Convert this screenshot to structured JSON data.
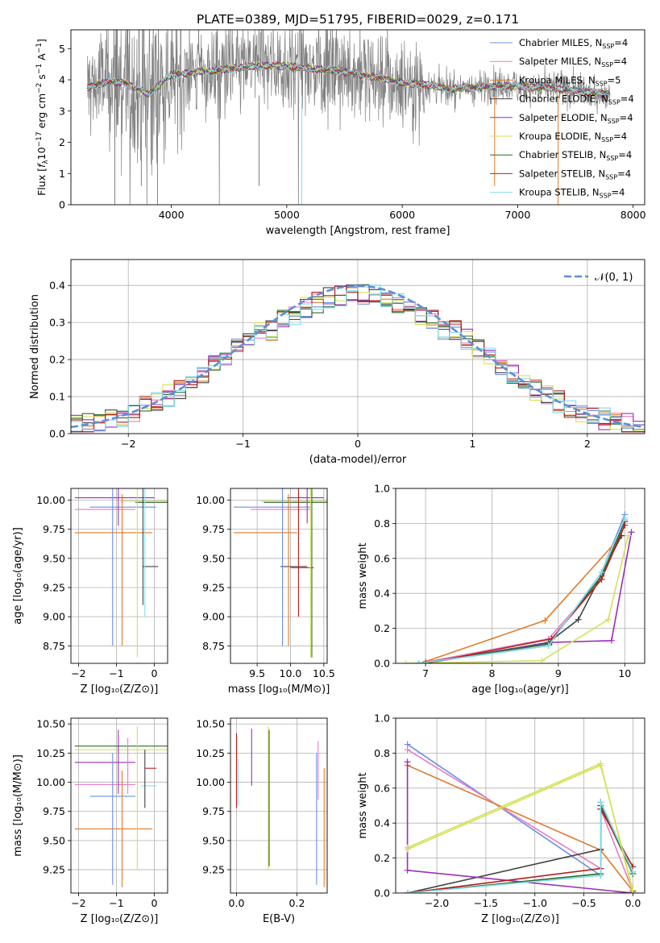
{
  "figure": {
    "title": "PLATE=0389, MJD=51795, FIBERID=0029, z=0.171"
  },
  "models": [
    {
      "name": "Chabrier MILES, N_SSP=4",
      "label": "Chabrier MILES, N",
      "sub": "SSP",
      "suffix": "=4",
      "color": "#6b8fe6"
    },
    {
      "name": "Salpeter MILES, N_SSP=4",
      "label": "Salpeter MILES, N",
      "sub": "SSP",
      "suffix": "=4",
      "color": "#e87dc3"
    },
    {
      "name": "Kroupa MILES, N_SSP=5",
      "label": "Kroupa MILES, N",
      "sub": "SSP",
      "suffix": "=5",
      "color": "#e07b2a"
    },
    {
      "name": "Chabrier ELODIE, N_SSP=4",
      "label": "Chabrier ELODIE, N",
      "sub": "SSP",
      "suffix": "=4",
      "color": "#444444"
    },
    {
      "name": "Salpeter ELODIE, N_SSP=4",
      "label": "Salpeter ELODIE, N",
      "sub": "SSP",
      "suffix": "=4",
      "color": "#9a2fb5"
    },
    {
      "name": "Kroupa ELODIE, N_SSP=4",
      "label": "Kroupa ELODIE, N",
      "sub": "SSP",
      "suffix": "=4",
      "color": "#d4e157"
    },
    {
      "name": "Chabrier STELIB, N_SSP=4",
      "label": "Chabrier STELIB, N",
      "sub": "SSP",
      "suffix": "=4",
      "color": "#2f6b2f"
    },
    {
      "name": "Salpeter STELIB, N_SSP=4",
      "label": "Salpeter STELIB, N",
      "sub": "SSP",
      "suffix": "=4",
      "color": "#b71c1c"
    },
    {
      "name": "Kroupa STELIB, N_SSP=4",
      "label": "Kroupa STELIB, N",
      "sub": "SSP",
      "suffix": "=4",
      "color": "#80deea"
    }
  ],
  "chart_data": [
    {
      "id": "spectrum",
      "type": "line",
      "xlabel": "wavelength [Angstrom, rest frame]",
      "ylabel": "Flux [f_λ 10^-17 erg cm^-2 s^-1 A^-1]",
      "xlim": [
        3130,
        8100
      ],
      "ylim": [
        0,
        5.6
      ],
      "xticks": [
        4000,
        5000,
        6000,
        7000,
        8000
      ],
      "yticks": [
        0,
        1,
        2,
        3,
        4,
        5
      ],
      "grid": false,
      "legend": "top-right",
      "data_color": "#808080",
      "continuum_x": [
        3270,
        3450,
        3600,
        3800,
        4000,
        4200,
        4400,
        4600,
        4800,
        5000,
        5200,
        5400,
        5600,
        5800,
        6000,
        6200,
        6400,
        6600,
        6800,
        7000,
        7200,
        7400,
        7600,
        7800
      ],
      "continuum_y": [
        3.75,
        3.95,
        3.9,
        3.55,
        4.15,
        4.25,
        4.3,
        4.4,
        4.45,
        4.45,
        4.35,
        4.3,
        4.2,
        4.05,
        3.9,
        3.85,
        3.7,
        3.75,
        3.8,
        3.8,
        3.75,
        3.7,
        3.6,
        3.55
      ]
    },
    {
      "id": "residuals",
      "type": "line",
      "xlabel": "(data-model)/error",
      "ylabel": "Normed distribution",
      "xlim": [
        -2.5,
        2.5
      ],
      "ylim": [
        0,
        0.47
      ],
      "xticks": [
        -2,
        -1,
        0,
        1,
        2
      ],
      "yticks": [
        0.0,
        0.1,
        0.2,
        0.3,
        0.4
      ],
      "grid": true,
      "legend": "top-right",
      "normal_label": "𝒩(0, 1)",
      "normal_color": "#5b8fd6"
    },
    {
      "id": "age-vs-Z",
      "type": "scatter",
      "xlabel": "Z [log10(Z/Z⊙)]",
      "ylabel": "age  [log10(age/yr)]",
      "xlim": [
        -2.2,
        0.35
      ],
      "ylim": [
        8.6,
        10.1
      ],
      "xticks": [
        -2,
        -1,
        0
      ],
      "yticks": [
        8.75,
        9.0,
        9.25,
        9.5,
        9.75,
        10.0
      ],
      "grid": true,
      "hlines": [
        {
          "y": 10.02,
          "x1": -2.1,
          "x2": 0.0,
          "c": 4
        },
        {
          "y": 9.99,
          "x1": -0.9,
          "x2": 0.35,
          "c": 5
        },
        {
          "y": 9.98,
          "x1": -0.5,
          "x2": 0.35,
          "c": 6
        },
        {
          "y": 9.94,
          "x1": -1.7,
          "x2": 0.05,
          "c": 0
        },
        {
          "y": 9.92,
          "x1": -2.1,
          "x2": -0.5,
          "c": 1
        },
        {
          "y": 9.72,
          "x1": -2.1,
          "x2": -0.05,
          "c": 2
        },
        {
          "y": 9.43,
          "x1": -0.3,
          "x2": 0.1,
          "c": 3
        }
      ],
      "vlines": [
        {
          "x": -1.1,
          "y1": 8.75,
          "y2": 10.15,
          "c": 0
        },
        {
          "x": -0.95,
          "y1": 9.78,
          "y2": 10.15,
          "c": 4
        },
        {
          "x": -0.85,
          "y1": 8.75,
          "y2": 10.05,
          "c": 2
        },
        {
          "x": -0.45,
          "y1": 8.65,
          "y2": 10.15,
          "c": 5
        },
        {
          "x": -0.3,
          "y1": 9.1,
          "y2": 10.1,
          "c": 3
        },
        {
          "x": -0.25,
          "y1": 9.0,
          "y2": 10.1,
          "c": 8
        }
      ]
    },
    {
      "id": "age-vs-mass",
      "type": "scatter",
      "xlabel": "mass [log10(M/M⊙)]",
      "ylabel": "",
      "xlim": [
        9.1,
        10.55
      ],
      "ylim": [
        8.6,
        10.1
      ],
      "xticks": [
        9.5,
        10.0,
        10.5
      ],
      "yticks": [
        8.75,
        9.0,
        9.25,
        9.5,
        9.75,
        10.0
      ],
      "grid": true,
      "hlines": [
        {
          "y": 10.02,
          "x1": 9.95,
          "x2": 10.5,
          "c": 4
        },
        {
          "y": 9.99,
          "x1": 9.55,
          "x2": 10.55,
          "c": 5
        },
        {
          "y": 9.98,
          "x1": 9.6,
          "x2": 10.55,
          "c": 6
        },
        {
          "y": 9.94,
          "x1": 9.15,
          "x2": 10.3,
          "c": 0
        },
        {
          "y": 9.92,
          "x1": 9.4,
          "x2": 10.3,
          "c": 1
        },
        {
          "y": 9.72,
          "x1": 9.15,
          "x2": 10.1,
          "c": 2
        },
        {
          "y": 9.43,
          "x1": 9.85,
          "x2": 10.25,
          "c": 3
        },
        {
          "y": 9.42,
          "x1": 10.0,
          "x2": 10.35,
          "c": 7
        }
      ],
      "vlines": [
        {
          "x": 9.88,
          "y1": 8.75,
          "y2": 10.15,
          "c": 0
        },
        {
          "x": 9.97,
          "y1": 8.75,
          "y2": 10.05,
          "c": 2
        },
        {
          "x": 10.12,
          "y1": 9.0,
          "y2": 10.1,
          "c": 7
        },
        {
          "x": 10.3,
          "y1": 8.65,
          "y2": 10.15,
          "c": 5
        },
        {
          "x": 10.32,
          "y1": 8.65,
          "y2": 10.1,
          "c": 6
        },
        {
          "x": 10.25,
          "y1": 9.8,
          "y2": 10.15,
          "c": 4
        }
      ]
    },
    {
      "id": "weight-vs-age",
      "type": "line",
      "xlabel": "age  [log10(age/yr)]",
      "ylabel": "mass weight",
      "xlim": [
        6.55,
        10.3
      ],
      "ylim": [
        0,
        1.0
      ],
      "xticks": [
        7,
        8,
        9,
        10
      ],
      "yticks": [
        0.0,
        0.2,
        0.4,
        0.6,
        0.8,
        1.0
      ],
      "grid": true,
      "series": [
        {
          "c": 0,
          "x": [
            6.9,
            8.85,
            9.65,
            10.0
          ],
          "y": [
            0.0,
            0.1,
            0.52,
            0.85
          ]
        },
        {
          "c": 1,
          "x": [
            6.9,
            8.85,
            9.65,
            10.0
          ],
          "y": [
            0.0,
            0.14,
            0.48,
            0.82
          ]
        },
        {
          "c": 2,
          "x": [
            7.0,
            8.8,
            9.95
          ],
          "y": [
            0.01,
            0.245,
            0.73
          ]
        },
        {
          "c": 3,
          "x": [
            7.0,
            8.85,
            9.3,
            9.95
          ],
          "y": [
            0.0,
            0.12,
            0.25,
            0.73
          ]
        },
        {
          "c": 4,
          "x": [
            7.0,
            8.9,
            9.8,
            10.1
          ],
          "y": [
            0.0,
            0.12,
            0.13,
            0.75
          ]
        },
        {
          "c": 5,
          "x": [
            6.7,
            8.75,
            9.75,
            10.05
          ],
          "y": [
            0.0,
            0.015,
            0.25,
            0.73
          ]
        },
        {
          "c": 6,
          "x": [
            6.9,
            8.85,
            9.65,
            10.0
          ],
          "y": [
            0.0,
            0.11,
            0.5,
            0.81
          ]
        },
        {
          "c": 7,
          "x": [
            7.0,
            8.9,
            9.65,
            10.0
          ],
          "y": [
            0.0,
            0.14,
            0.48,
            0.79
          ]
        },
        {
          "c": 8,
          "x": [
            6.9,
            8.85,
            9.65,
            10.0
          ],
          "y": [
            0.0,
            0.1,
            0.52,
            0.83
          ]
        }
      ]
    },
    {
      "id": "mass-vs-Z",
      "type": "scatter",
      "xlabel": "Z [log10(Z/Z⊙)]",
      "ylabel": "mass [log10(M/M⊙)]",
      "xlim": [
        -2.2,
        0.35
      ],
      "ylim": [
        9.05,
        10.55
      ],
      "xticks": [
        -2,
        -1,
        0
      ],
      "yticks": [
        9.25,
        9.5,
        9.75,
        10.0,
        10.25,
        10.5
      ],
      "grid": true,
      "hlines": [
        {
          "y": 10.31,
          "x1": -2.1,
          "x2": 0.35,
          "c": 6
        },
        {
          "y": 10.28,
          "x1": -2.1,
          "x2": 0.35,
          "c": 5
        },
        {
          "y": 10.17,
          "x1": -2.1,
          "x2": -0.5,
          "c": 4
        },
        {
          "y": 10.12,
          "x1": -0.25,
          "x2": 0.05,
          "c": 7
        },
        {
          "y": 9.98,
          "x1": -2.1,
          "x2": -0.5,
          "c": 1
        },
        {
          "y": 9.97,
          "x1": -0.35,
          "x2": 0.05,
          "c": 8
        },
        {
          "y": 9.88,
          "x1": -1.7,
          "x2": -0.5,
          "c": 0
        },
        {
          "y": 9.6,
          "x1": -2.1,
          "x2": -0.05,
          "c": 2
        }
      ],
      "vlines": [
        {
          "x": -1.1,
          "y1": 9.12,
          "y2": 10.25,
          "c": 0
        },
        {
          "x": -0.95,
          "y1": 9.9,
          "y2": 10.45,
          "c": 4
        },
        {
          "x": -0.85,
          "y1": 9.1,
          "y2": 10.1,
          "c": 2
        },
        {
          "x": -0.7,
          "y1": 9.9,
          "y2": 10.38,
          "c": 1
        },
        {
          "x": -0.45,
          "y1": 9.25,
          "y2": 10.48,
          "c": 5
        },
        {
          "x": -0.25,
          "y1": 9.78,
          "y2": 10.28,
          "c": 3
        }
      ]
    },
    {
      "id": "mass-vs-EBV",
      "type": "scatter",
      "xlabel": "E(B-V)",
      "ylabel": "",
      "xlim": [
        -0.02,
        0.3
      ],
      "ylim": [
        9.05,
        10.55
      ],
      "xticks": [
        0.0,
        0.2
      ],
      "yticks": [
        9.25,
        9.5,
        9.75,
        10.0,
        10.25,
        10.5
      ],
      "grid": true,
      "hlines": [],
      "vlines": [
        {
          "x": 0.0,
          "y1": 9.78,
          "y2": 10.42,
          "c": 7
        },
        {
          "x": 0.005,
          "y1": 9.8,
          "y2": 10.2,
          "c": 8
        },
        {
          "x": 0.05,
          "y1": 9.97,
          "y2": 10.46,
          "c": 4
        },
        {
          "x": 0.105,
          "y1": 9.25,
          "y2": 10.48,
          "c": 5
        },
        {
          "x": 0.108,
          "y1": 9.28,
          "y2": 10.45,
          "c": 6
        },
        {
          "x": 0.265,
          "y1": 9.12,
          "y2": 10.25,
          "c": 0
        },
        {
          "x": 0.27,
          "y1": 9.85,
          "y2": 10.35,
          "c": 1
        },
        {
          "x": 0.29,
          "y1": 9.1,
          "y2": 10.12,
          "c": 2
        }
      ]
    },
    {
      "id": "weight-vs-Z",
      "type": "line",
      "xlabel": "Z [log10(Z/Z⊙)]",
      "ylabel": "mass weight",
      "xlim": [
        -2.42,
        0.12
      ],
      "ylim": [
        0,
        1.0
      ],
      "xticks": [
        -2.0,
        -1.5,
        -1.0,
        -0.5,
        0.0
      ],
      "yticks": [
        0.0,
        0.2,
        0.4,
        0.6,
        0.8,
        1.0
      ],
      "grid": true,
      "series": [
        {
          "c": 0,
          "x": [
            -2.3,
            -0.33,
            -0.33,
            0.0
          ],
          "y": [
            0.85,
            0.1,
            0.5,
            0.12
          ]
        },
        {
          "c": 1,
          "x": [
            -2.3,
            -0.33,
            -0.33,
            0.0
          ],
          "y": [
            0.82,
            0.14,
            0.48,
            0.01
          ]
        },
        {
          "c": 2,
          "x": [
            -2.3,
            -0.33,
            0.0
          ],
          "y": [
            0.73,
            0.245,
            0.01
          ]
        },
        {
          "c": 3,
          "x": [
            -2.3,
            -0.33,
            -0.33,
            0.0
          ],
          "y": [
            0.0,
            0.25,
            0.52,
            0.12
          ]
        },
        {
          "c": 4,
          "x": [
            -2.3,
            -2.3,
            0.0,
            0.0
          ],
          "y": [
            0.75,
            0.13,
            0.0,
            0.01
          ]
        },
        {
          "c": 5,
          "x": [
            -2.3,
            -0.33,
            0.0
          ],
          "y": [
            0.25,
            0.73,
            0.015
          ]
        },
        {
          "c": 6,
          "x": [
            -2.3,
            -0.33,
            -0.33,
            0.0
          ],
          "y": [
            0.0,
            0.11,
            0.5,
            0.11
          ]
        },
        {
          "c": 7,
          "x": [
            -2.3,
            -0.33,
            -0.33,
            0.0
          ],
          "y": [
            0.0,
            0.14,
            0.48,
            0.15
          ]
        },
        {
          "c": 8,
          "x": [
            -2.3,
            -0.33,
            -0.33,
            0.0
          ],
          "y": [
            0.0,
            0.1,
            0.52,
            0.12
          ]
        },
        {
          "c": 5,
          "x": [
            -2.3,
            -0.33,
            0.0
          ],
          "y": [
            0.26,
            0.74,
            0.0
          ]
        }
      ]
    }
  ]
}
